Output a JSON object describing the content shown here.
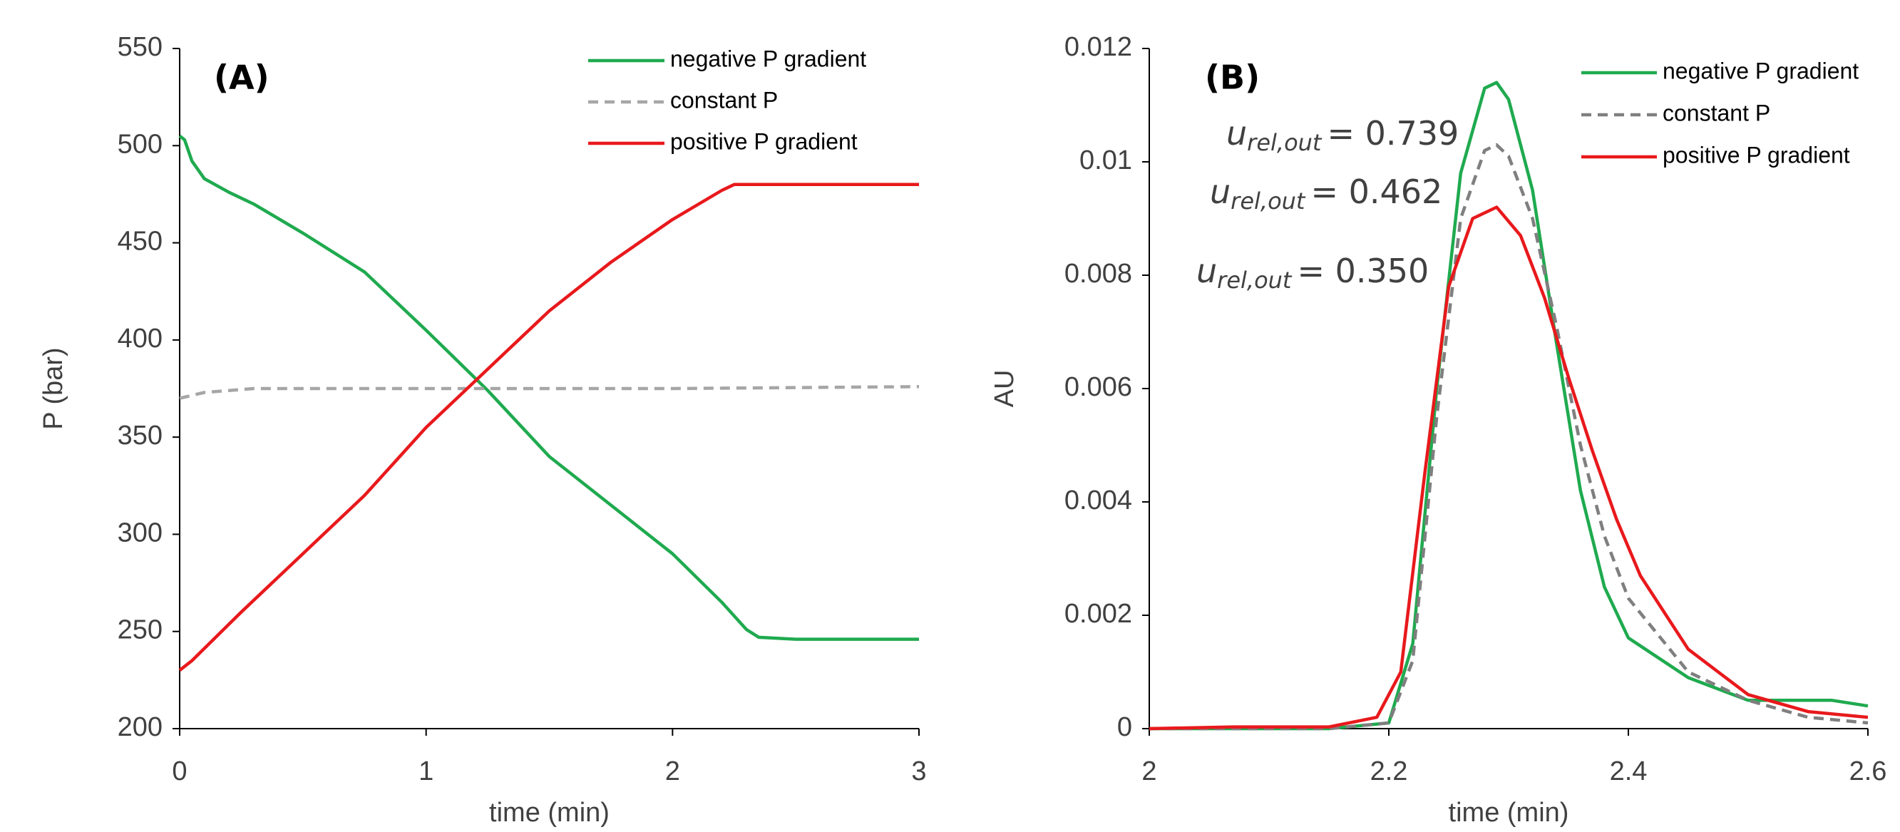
{
  "chart_data": [
    {
      "type": "line",
      "title": "(A)",
      "x_label": "time (min)",
      "y_label": "P (bar)",
      "xlim": [
        0,
        3
      ],
      "xticks": [
        0,
        1,
        2,
        3
      ],
      "ylim": [
        200,
        550
      ],
      "yticks": [
        200,
        250,
        300,
        350,
        400,
        450,
        500,
        550
      ],
      "grid": false,
      "legend": "top-right",
      "series": [
        {
          "name": "negative P gradient",
          "color": "#1faa4f",
          "dash": false,
          "x": [
            0,
            0.02,
            0.05,
            0.1,
            0.2,
            0.3,
            0.5,
            0.75,
            1,
            1.25,
            1.5,
            1.75,
            2,
            2.2,
            2.3,
            2.35,
            2.5,
            3
          ],
          "values": [
            505,
            503,
            492,
            483,
            476,
            470,
            455,
            435,
            405,
            374,
            340,
            315,
            290,
            265,
            251,
            247,
            246,
            246
          ]
        },
        {
          "name": "constant P",
          "color": "#a6a6a6",
          "dash": true,
          "x": [
            0,
            0.1,
            0.3,
            1,
            1.5,
            2,
            3
          ],
          "values": [
            370,
            373,
            375,
            375,
            375,
            375,
            376
          ]
        },
        {
          "name": "positive P gradient",
          "color": "#e8191c",
          "dash": false,
          "x": [
            0,
            0.05,
            0.25,
            0.5,
            0.75,
            1,
            1.25,
            1.5,
            1.75,
            2,
            2.2,
            2.25,
            3
          ],
          "values": [
            230,
            235,
            260,
            290,
            320,
            355,
            385,
            415,
            440,
            462,
            477,
            480,
            480
          ]
        }
      ]
    },
    {
      "type": "line",
      "title": "(B)",
      "x_label": "time (min)",
      "y_label": "AU",
      "xlim": [
        2,
        2.6
      ],
      "xticks": [
        2,
        2.2,
        2.4,
        2.6
      ],
      "ylim": [
        0,
        0.012
      ],
      "yticks": [
        0,
        0.002,
        0.004,
        0.006,
        0.008,
        0.01,
        0.012
      ],
      "grid": false,
      "legend": "top-right",
      "series": [
        {
          "name": "negative P gradient",
          "color": "#1faa4f",
          "dash": false,
          "x": [
            2,
            2.15,
            2.2,
            2.22,
            2.24,
            2.26,
            2.28,
            2.29,
            2.3,
            2.32,
            2.34,
            2.36,
            2.38,
            2.4,
            2.45,
            2.5,
            2.54,
            2.57,
            2.6
          ],
          "values": [
            0,
            0,
            0.0001,
            0.0015,
            0.006,
            0.0098,
            0.0113,
            0.0114,
            0.0111,
            0.0095,
            0.0068,
            0.0042,
            0.0025,
            0.0016,
            0.0009,
            0.0005,
            0.0005,
            0.0005,
            0.0004
          ]
        },
        {
          "name": "constant P",
          "color": "#7f7f7f",
          "dash": true,
          "x": [
            2,
            2.15,
            2.2,
            2.22,
            2.24,
            2.26,
            2.28,
            2.29,
            2.3,
            2.32,
            2.34,
            2.36,
            2.38,
            2.4,
            2.45,
            2.5,
            2.55,
            2.6
          ],
          "values": [
            0,
            0,
            0.0001,
            0.0012,
            0.0055,
            0.009,
            0.0102,
            0.0103,
            0.0101,
            0.009,
            0.0071,
            0.005,
            0.0034,
            0.0023,
            0.001,
            0.0005,
            0.0002,
            0.0001
          ]
        },
        {
          "name": "positive P gradient",
          "color": "#e8191c",
          "dash": false,
          "x": [
            2,
            2.07,
            2.15,
            2.19,
            2.21,
            2.23,
            2.25,
            2.27,
            2.29,
            2.31,
            2.33,
            2.35,
            2.37,
            2.39,
            2.41,
            2.45,
            2.5,
            2.55,
            2.6
          ],
          "values": [
            0,
            3e-05,
            3e-05,
            0.0002,
            0.001,
            0.0045,
            0.0078,
            0.009,
            0.0092,
            0.0087,
            0.0076,
            0.0062,
            0.0049,
            0.0037,
            0.0027,
            0.0014,
            0.0006,
            0.0003,
            0.0002
          ]
        }
      ],
      "annotations": [
        {
          "symbol": "u",
          "subscript": "rel,out",
          "text": "= 0.739",
          "color": "#1faa4f"
        },
        {
          "symbol": "u",
          "subscript": "rel,out",
          "text": "= 0.462",
          "color": "#8c8c8c"
        },
        {
          "symbol": "u",
          "subscript": "rel,out",
          "text": "= 0.350",
          "color": "#e8191c"
        }
      ]
    }
  ]
}
